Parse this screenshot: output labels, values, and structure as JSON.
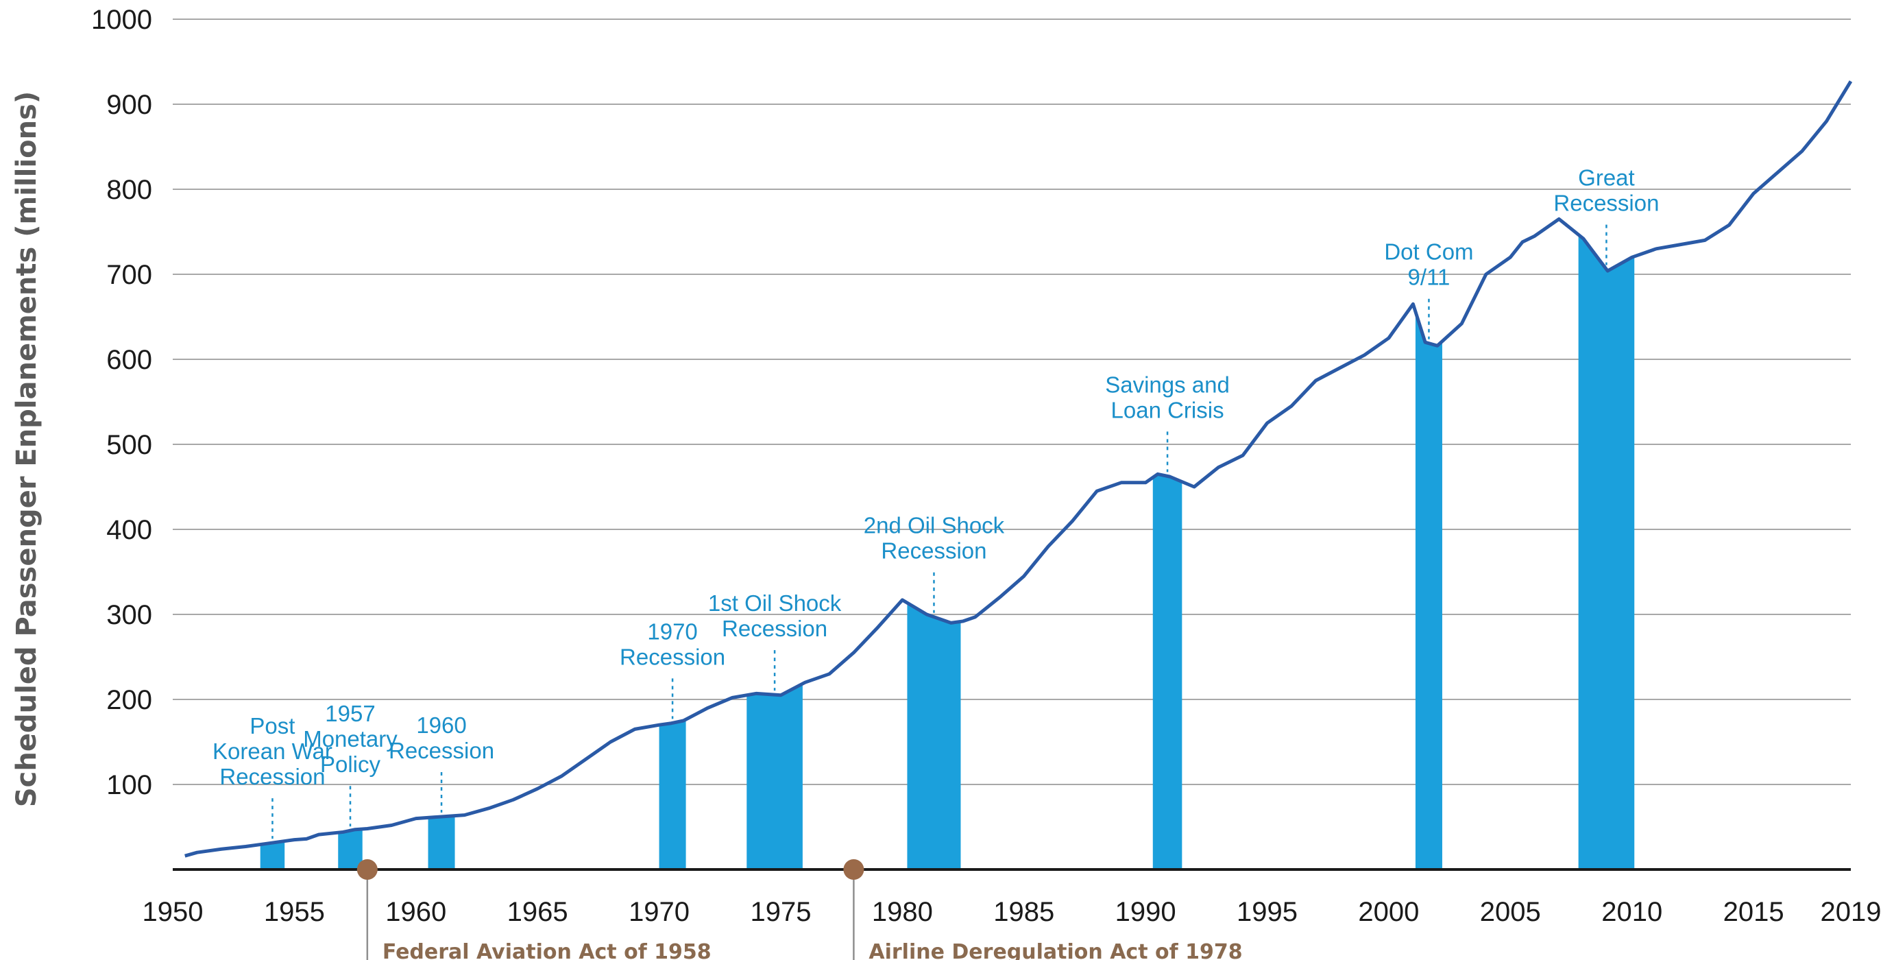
{
  "chart_data": {
    "type": "area",
    "title": "",
    "xlabel": "",
    "ylabel": "Scheduled Passenger Enplanements (millions)",
    "xlim": [
      1950,
      2019
    ],
    "ylim": [
      0,
      1000
    ],
    "x_ticks": [
      "1950",
      "1955",
      "1960",
      "1965",
      "1970",
      "1975",
      "1980",
      "1985",
      "1990",
      "1995",
      "2000",
      "2005",
      "2010",
      "2015",
      "2019"
    ],
    "y_ticks": [
      "1000",
      "900",
      "800",
      "700",
      "600",
      "500",
      "400",
      "300",
      "200",
      "100"
    ],
    "grid": true,
    "colors": {
      "line": "#2a5aa6",
      "recession": "#1ba0dc",
      "annotation": "#1b8fc9",
      "event": "#8a6a4f"
    },
    "series": [
      {
        "x": [
          1950.5,
          1951,
          1952,
          1953,
          1954,
          1954.5,
          1955,
          1955.5,
          1956,
          1957,
          1957.5,
          1958,
          1959,
          1960,
          1961,
          1962,
          1963,
          1964,
          1965,
          1966,
          1967,
          1968,
          1969,
          1970,
          1970.5,
          1971,
          1972,
          1973,
          1974,
          1975,
          1976,
          1977,
          1978,
          1979,
          1980,
          1981,
          1982,
          1982.5,
          1983,
          1984,
          1985,
          1986,
          1987,
          1988,
          1989,
          1990,
          1990.5,
          1991,
          1992,
          1993,
          1994,
          1995,
          1996,
          1997,
          1998,
          1999,
          2000,
          2001,
          2001.5,
          2002,
          2003,
          2004,
          2005,
          2005.5,
          2006,
          2007,
          2008,
          2009,
          2010,
          2011,
          2012,
          2013,
          2014,
          2015,
          2016,
          2017,
          2018,
          2019
        ],
        "y": [
          16,
          20,
          24,
          27,
          31,
          33,
          35,
          36,
          41,
          44,
          47,
          48,
          52,
          60,
          62,
          64,
          72,
          82,
          95,
          110,
          130,
          150,
          165,
          170,
          172,
          175,
          190,
          202,
          207,
          205,
          220,
          230,
          255,
          285,
          317,
          300,
          290,
          292,
          297,
          320,
          345,
          380,
          410,
          445,
          455,
          455,
          465,
          462,
          450,
          473,
          487,
          525,
          545,
          575,
          590,
          605,
          625,
          665,
          620,
          616,
          642,
          700,
          720,
          738,
          745,
          765,
          742,
          704,
          720,
          730,
          735,
          740,
          758,
          795,
          820,
          845,
          880,
          927
        ]
      }
    ],
    "recessions": [
      {
        "label": [
          "Post",
          "Korean War",
          "Recession"
        ],
        "x0": 1953.6,
        "x1": 1954.6
      },
      {
        "label": [
          "1957",
          "Monetary",
          "Policy"
        ],
        "x0": 1956.8,
        "x1": 1957.8
      },
      {
        "label": [
          "1960",
          "Recession"
        ],
        "x0": 1960.5,
        "x1": 1961.6
      },
      {
        "label": [
          "1970",
          "Recession"
        ],
        "x0": 1970.0,
        "x1": 1971.1
      },
      {
        "label": [
          "1st Oil Shock",
          "Recession"
        ],
        "x0": 1973.6,
        "x1": 1975.9
      },
      {
        "label": [
          "2nd Oil Shock",
          "Recession"
        ],
        "x0": 1980.2,
        "x1": 1982.4
      },
      {
        "label": [
          "Savings and",
          "Loan Crisis"
        ],
        "x0": 1990.3,
        "x1": 1991.5
      },
      {
        "label": [
          "Dot Com",
          "9/11"
        ],
        "x0": 2001.1,
        "x1": 2002.2
      },
      {
        "label": [
          "Great",
          "Recession"
        ],
        "x0": 2007.8,
        "x1": 2010.1
      }
    ],
    "events": [
      {
        "label": "Federal Aviation Act of 1958",
        "x": 1958
      },
      {
        "label": "Airline Deregulation Act of 1978",
        "x": 1978
      }
    ]
  }
}
